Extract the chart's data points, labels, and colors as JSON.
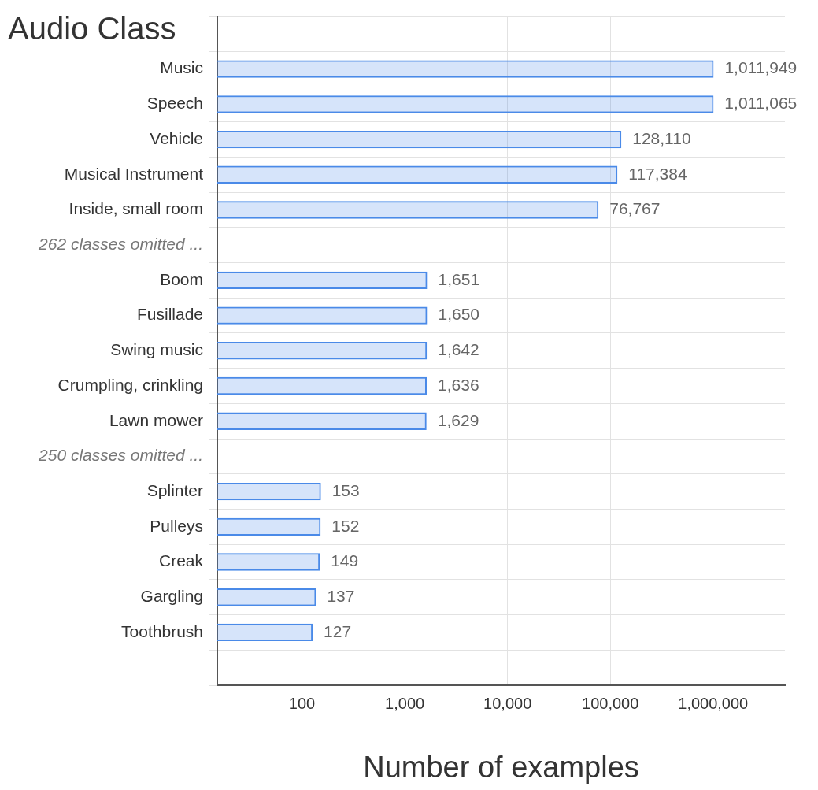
{
  "chart_data": {
    "type": "bar",
    "orientation": "horizontal",
    "log": "x",
    "ylabel": "Audio Class",
    "xlabel": "Number of examples",
    "categories": [
      null,
      "Music",
      "Speech",
      "Vehicle",
      "Musical Instrument",
      "Inside, small room",
      "262 classes omitted ...",
      "Boom",
      "Fusillade",
      "Swing music",
      "Crumpling, crinkling",
      "Lawn mower",
      "250 classes omitted ...",
      "Splinter",
      "Pulleys",
      "Creak",
      "Gargling",
      "Toothbrush",
      null
    ],
    "values": [
      null,
      1011949,
      1011065,
      128110,
      117384,
      76767,
      null,
      1651,
      1650,
      1642,
      1636,
      1629,
      null,
      153,
      152,
      149,
      137,
      127,
      null
    ],
    "value_labels": [
      null,
      "1,011,949",
      "1,011,065",
      "128,110",
      "117,384",
      "76,767",
      null,
      "1,651",
      "1,650",
      "1,642",
      "1,636",
      "1,629",
      null,
      "153",
      "152",
      "149",
      "137",
      "127",
      null
    ],
    "color": "#4a8ae8",
    "xlim": [
      15,
      5000000
    ],
    "xticks": [
      100,
      {
        "value": 1000,
        "label": "1,000"
      },
      {
        "value": 10000,
        "label": "10,000"
      },
      {
        "value": 100000,
        "label": "100,000"
      },
      {
        "value": 1000000,
        "label": "1,000,000"
      }
    ],
    "grid": true,
    "legend": false
  }
}
